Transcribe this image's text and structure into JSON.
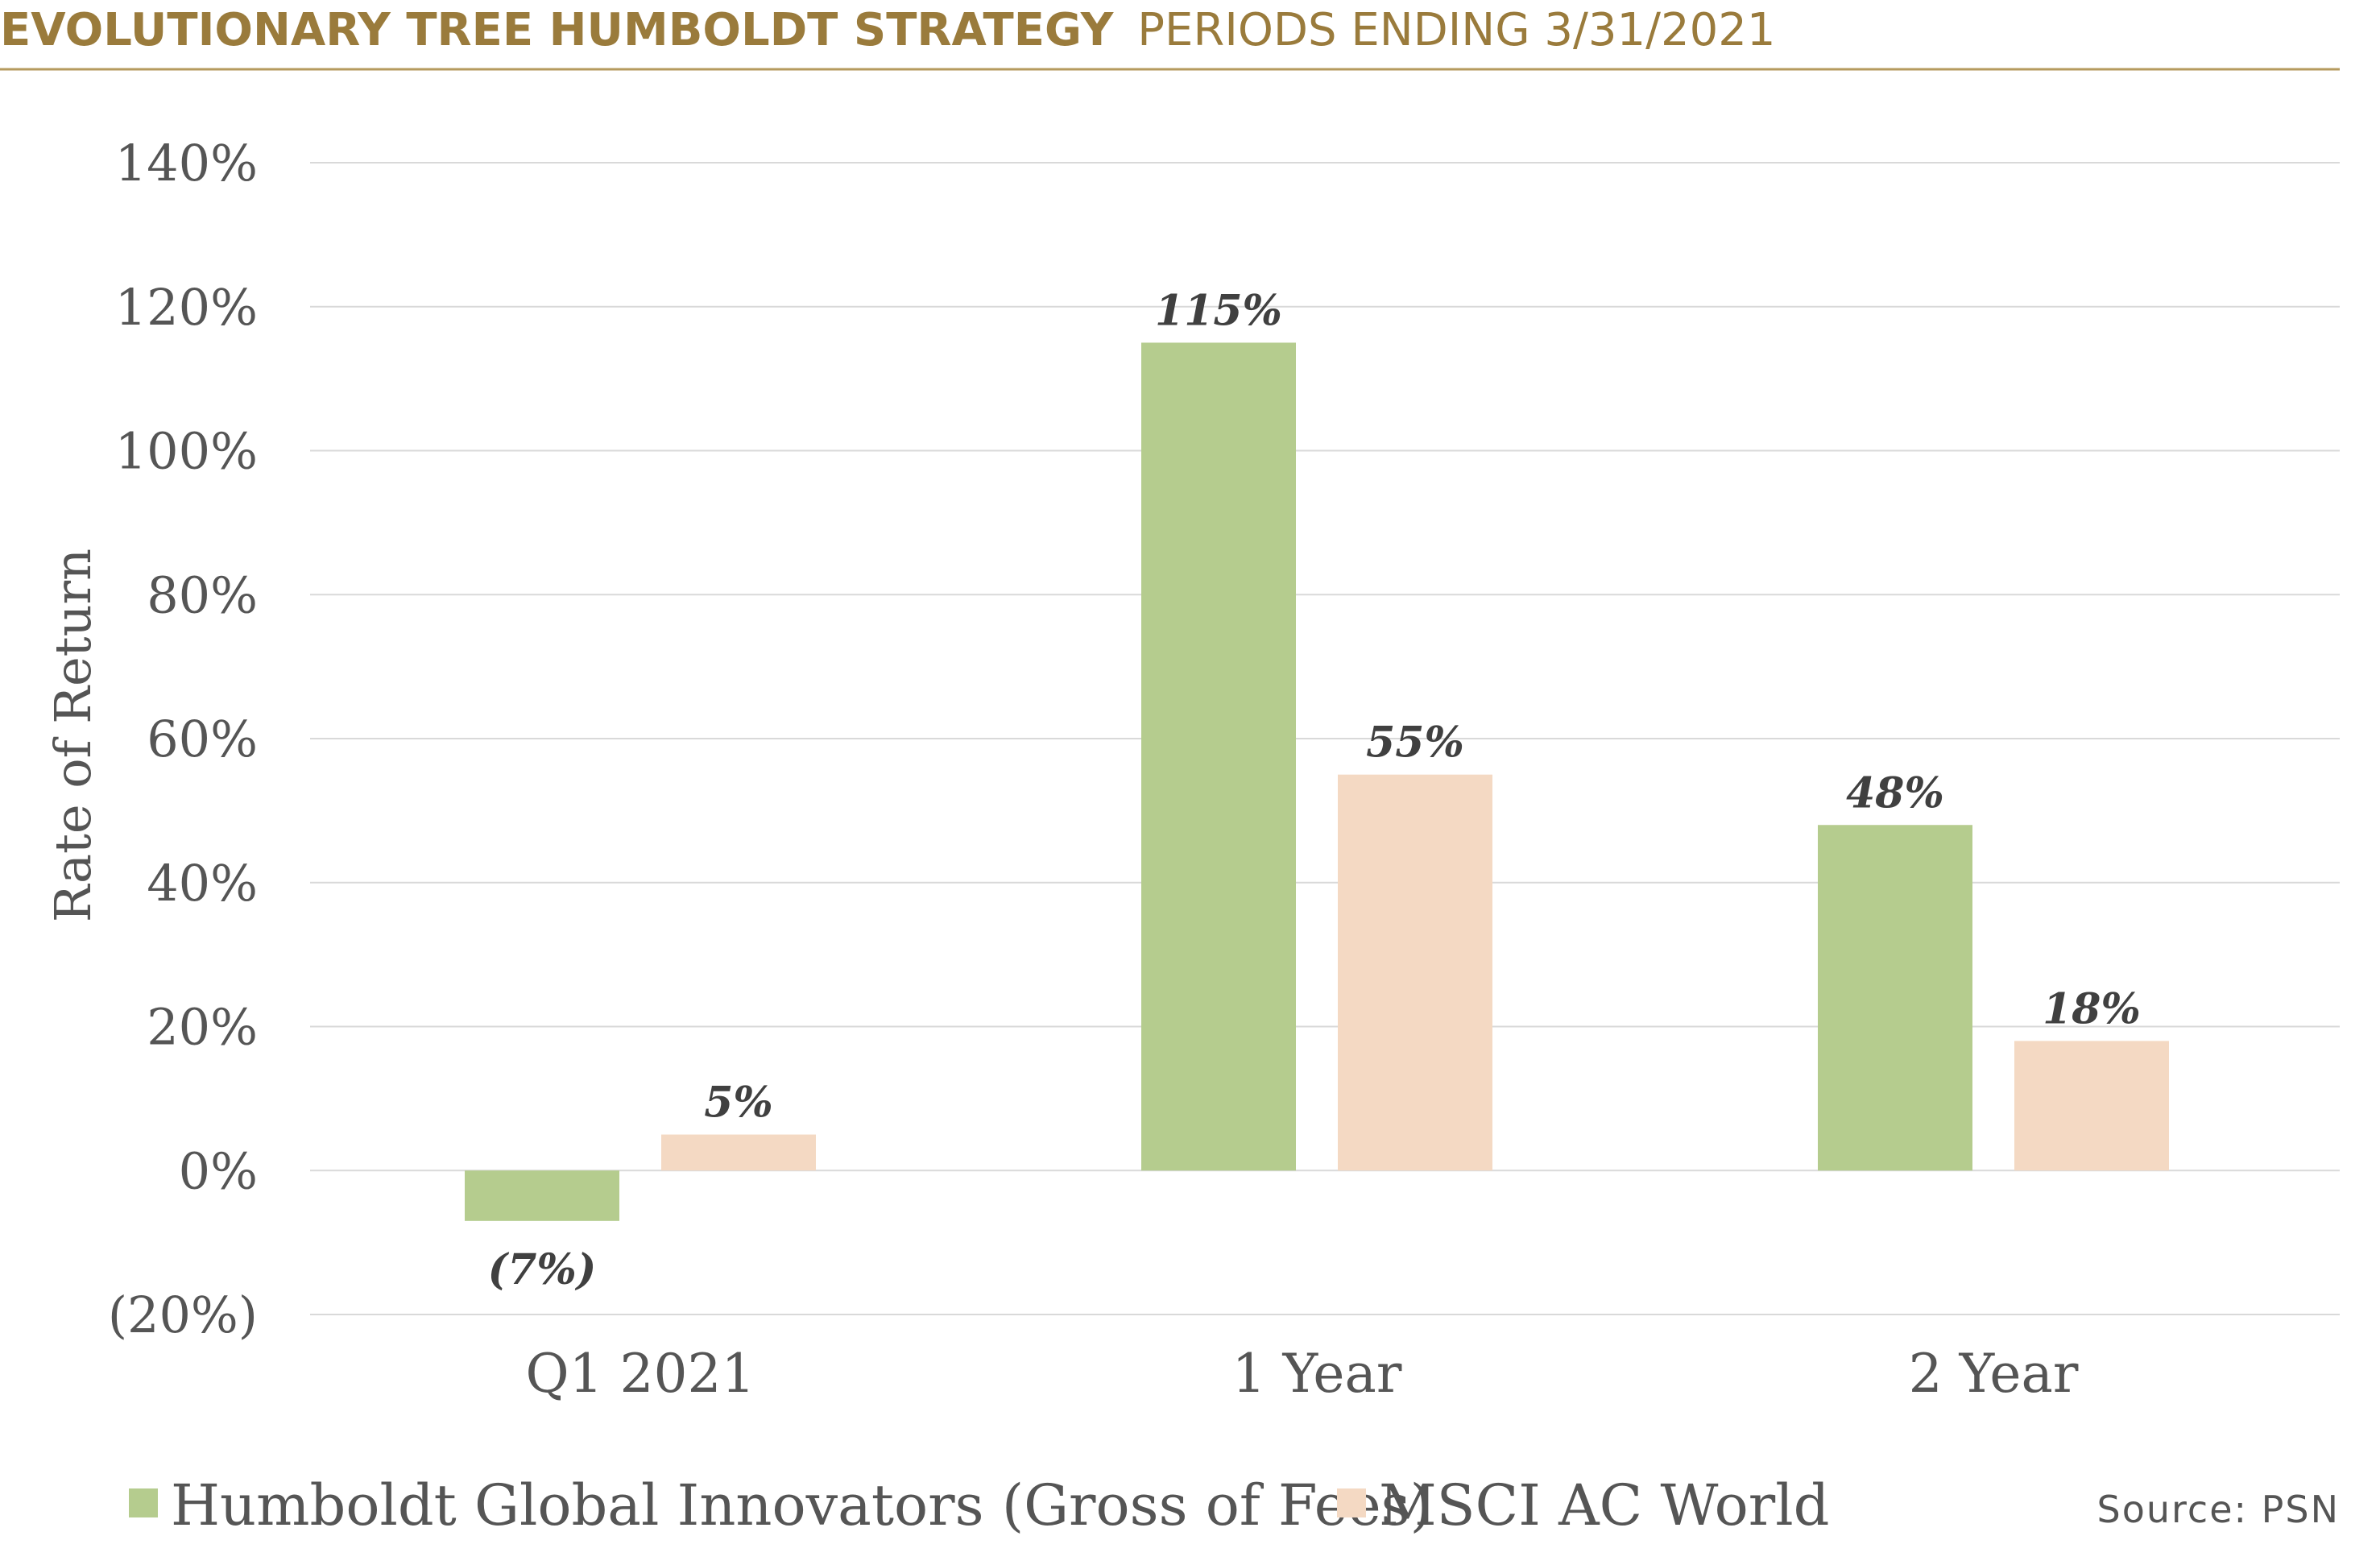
{
  "header": {
    "title_bold": "EVOLUTIONARY TREE HUMBOLDT STRATEGY",
    "title_light": "PERIODS ENDING 3/31/2021"
  },
  "source": "Source: PSN",
  "colors": {
    "title": "#9a7b3c",
    "rule": "#b59a5e",
    "grid": "#d9d9d9",
    "axis_text": "#555555",
    "label_text": "#404040",
    "humboldt": "#b5cc8e",
    "msci": "#f4d9c3"
  },
  "chart_data": {
    "type": "bar",
    "ylabel": "Rate of Return",
    "ylim": [
      -20,
      140
    ],
    "yticks": [
      140,
      120,
      100,
      80,
      60,
      40,
      20,
      0,
      -20
    ],
    "ytick_labels": [
      "140%",
      "120%",
      "100%",
      "80%",
      "60%",
      "40%",
      "20%",
      "0%",
      "(20%)"
    ],
    "categories": [
      "Q1 2021",
      "1 Year",
      "2 Year"
    ],
    "grid": true,
    "legend_position": "bottom-left",
    "series": [
      {
        "name": "Humboldt Global Innovators (Gross of Fees)",
        "color": "#b5cc8e",
        "values": [
          -7,
          115,
          48
        ],
        "labels": [
          "(7%)",
          "115%",
          "48%"
        ]
      },
      {
        "name": "MSCI AC World",
        "color": "#f4d9c3",
        "values": [
          5,
          55,
          18
        ],
        "labels": [
          "5%",
          "55%",
          "18%"
        ]
      }
    ]
  }
}
